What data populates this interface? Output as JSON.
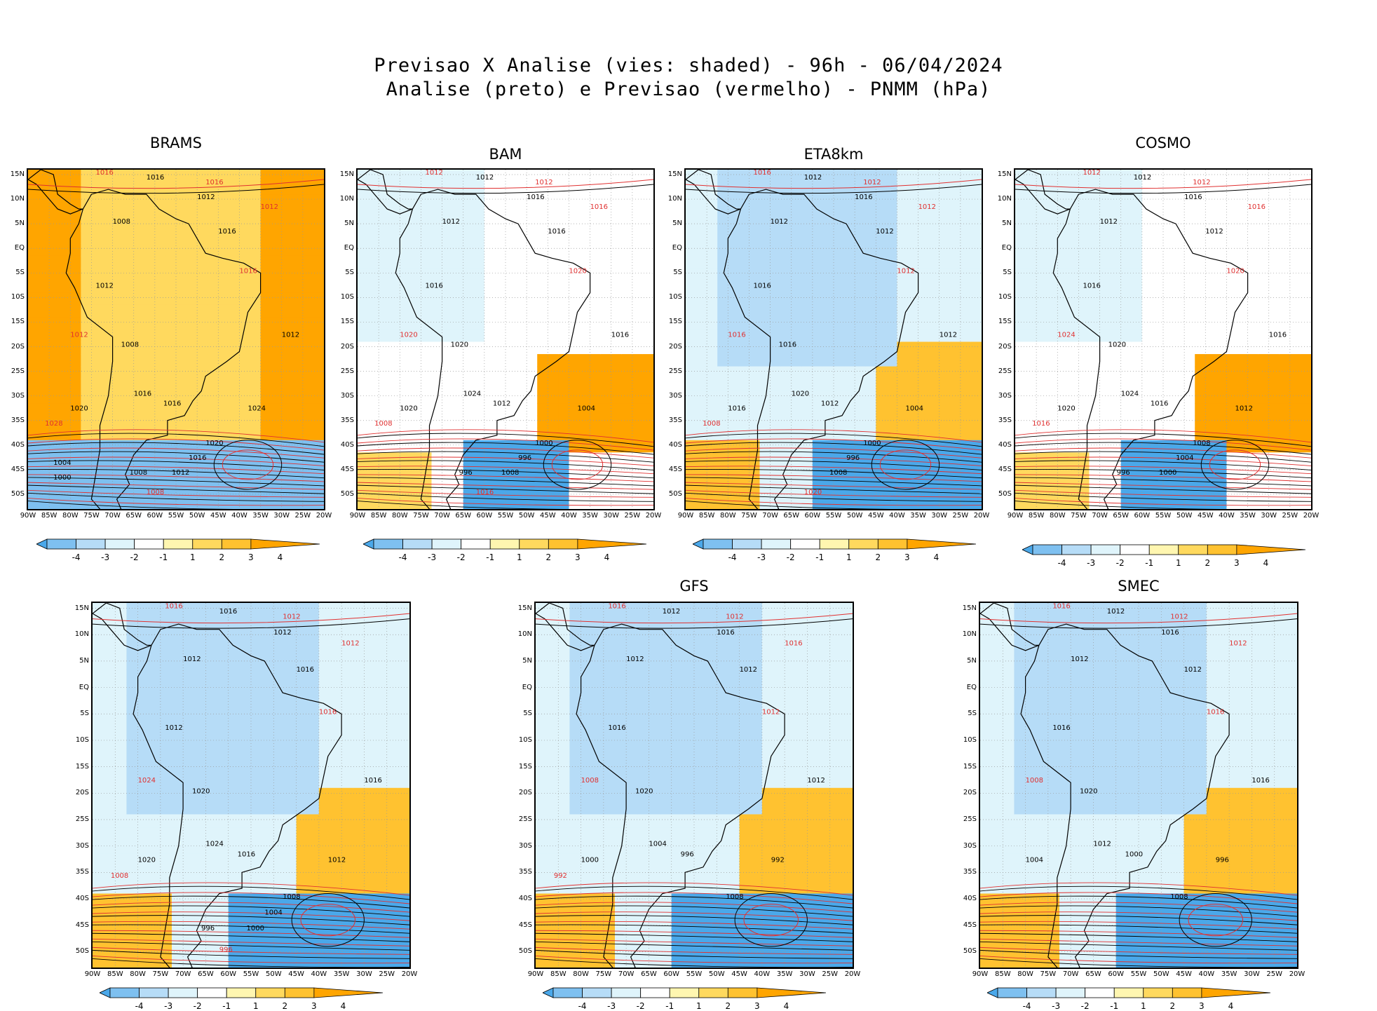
{
  "title_line1": "Previsao X Analise (vies: shaded) - 96h - 06/04/2024",
  "title_line2": "Analise (preto) e Previsao (vermelho) - PNMM (hPa)",
  "lat_labels": [
    "15N",
    "10N",
    "5N",
    "EQ",
    "5S",
    "10S",
    "15S",
    "20S",
    "25S",
    "30S",
    "35S",
    "40S",
    "45S",
    "50S"
  ],
  "lon_labels": [
    "90W",
    "85W",
    "80W",
    "75W",
    "70W",
    "65W",
    "60W",
    "55W",
    "50W",
    "45W",
    "40W",
    "35W",
    "30W",
    "25W",
    "20W"
  ],
  "colorbar": {
    "ticks": [
      "-4",
      "-3",
      "-2",
      "-1",
      "1",
      "2",
      "3",
      "4"
    ],
    "colors": [
      "#4aa8ea",
      "#7ec0f0",
      "#b6dcf7",
      "#dff4fb",
      "#ffffff",
      "#fff6b0",
      "#ffd95e",
      "#ffc230",
      "#ffa500"
    ]
  },
  "colors": {
    "analysis": "#000000",
    "forecast": "#e03030",
    "grid": "#999999"
  },
  "panels": [
    {
      "name": "BRAMS",
      "bias": "warm",
      "analysis_labels": [
        "1016",
        "1012",
        "1008",
        "1016",
        "1012",
        "1008",
        "1012",
        "1016",
        "1020",
        "1016",
        "1024",
        "1020",
        "1016",
        "1012",
        "1008",
        "1004",
        "1000"
      ],
      "forecast_labels": [
        "1016",
        "1016",
        "1012",
        "1016",
        "1012",
        "1028",
        "1008"
      ]
    },
    {
      "name": "BAM",
      "bias": "mixed",
      "analysis_labels": [
        "1012",
        "1016",
        "1012",
        "1016",
        "1016",
        "1020",
        "1016",
        "1024",
        "1020",
        "1012",
        "1004",
        "1000",
        "996",
        "1008",
        "996"
      ],
      "forecast_labels": [
        "1012",
        "1012",
        "1016",
        "1020",
        "1020",
        "1008",
        "1016"
      ]
    },
    {
      "name": "ETA8km",
      "bias": "cold",
      "analysis_labels": [
        "1012",
        "1016",
        "1012",
        "1012",
        "1016",
        "1016",
        "1012",
        "1020",
        "1016",
        "1012",
        "1004",
        "1000",
        "996",
        "1008"
      ],
      "forecast_labels": [
        "1016",
        "1012",
        "1012",
        "1012",
        "1016",
        "1008",
        "1020"
      ]
    },
    {
      "name": "COSMO",
      "bias": "mixed",
      "analysis_labels": [
        "1012",
        "1016",
        "1012",
        "1012",
        "1016",
        "1020",
        "1016",
        "1024",
        "1020",
        "1016",
        "1012",
        "1008",
        "1004",
        "1000",
        "996"
      ],
      "forecast_labels": [
        "1012",
        "1012",
        "1016",
        "1020",
        "1024",
        "1016"
      ]
    },
    {
      "name": "",
      "bias": "cold",
      "analysis_labels": [
        "1016",
        "1012",
        "1012",
        "1016",
        "1012",
        "1020",
        "1016",
        "1024",
        "1020",
        "1016",
        "1012",
        "1008",
        "1004",
        "1000",
        "996"
      ],
      "forecast_labels": [
        "1016",
        "1012",
        "1012",
        "1016",
        "1024",
        "1008",
        "996"
      ]
    },
    {
      "name": "GFS",
      "bias": "cold",
      "analysis_labels": [
        "1012",
        "1016",
        "1012",
        "1012",
        "1016",
        "1020",
        "1012",
        "1004",
        "1000",
        "996",
        "992",
        "1008"
      ],
      "forecast_labels": [
        "1016",
        "1012",
        "1016",
        "1012",
        "1008",
        "992"
      ]
    },
    {
      "name": "SMEC",
      "bias": "cold",
      "analysis_labels": [
        "1012",
        "1016",
        "1012",
        "1012",
        "1016",
        "1020",
        "1016",
        "1012",
        "1004",
        "1000",
        "996",
        "1008"
      ],
      "forecast_labels": [
        "1016",
        "1012",
        "1012",
        "1016",
        "1008"
      ]
    }
  ]
}
